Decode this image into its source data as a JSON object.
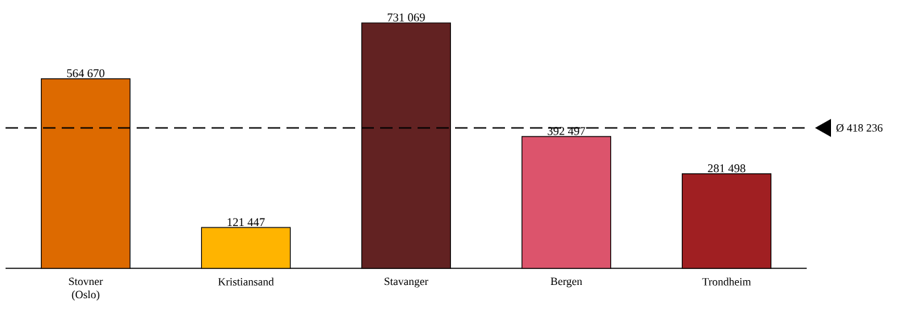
{
  "chart_data": {
    "type": "bar",
    "categories": [
      "Stovner (Oslo)",
      "Kristiansand",
      "Stavanger",
      "Bergen",
      "Trondheim"
    ],
    "values": [
      564670,
      121447,
      731069,
      392497,
      281498
    ],
    "colors": [
      "#dd6a00",
      "#ffb400",
      "#622222",
      "#dc546c",
      "#a01f22"
    ],
    "value_labels": [
      "564 670",
      "121 447",
      "731 069",
      "392 497",
      "281 498"
    ],
    "ref_lines": [
      {
        "axis": "y",
        "value": 418236,
        "label": "Ø 418 236",
        "color": "#000000",
        "line_style": "dashed"
      }
    ]
  }
}
